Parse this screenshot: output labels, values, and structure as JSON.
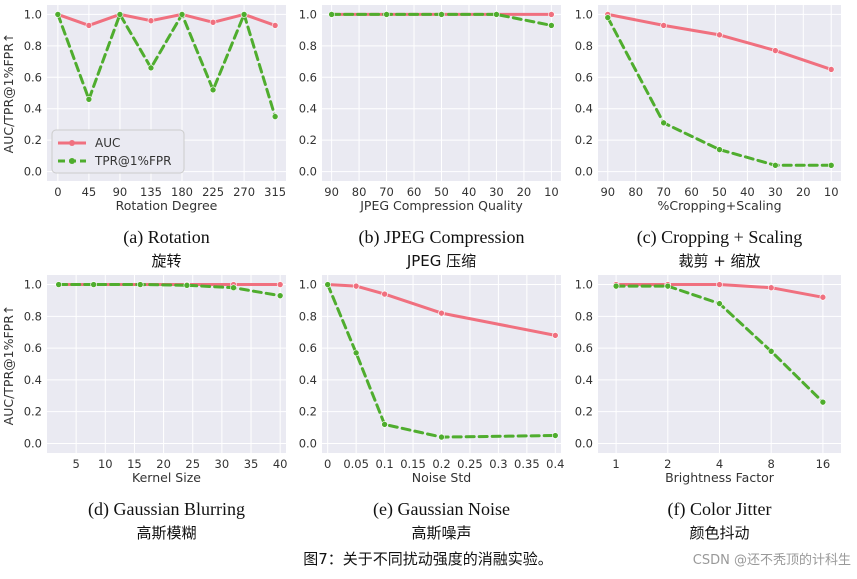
{
  "colors": {
    "auc": "#f0707f",
    "tpr": "#4fad2e",
    "plot_bg": "#eaeaf2",
    "grid": "#ffffff"
  },
  "ylabel": "AUC/TPR@1%FPR↑",
  "legend": {
    "items": [
      "AUC",
      "TPR@1%FPR"
    ],
    "location": "lower-left"
  },
  "figure_caption": "图7：关于不同扰动强度的消融实验。",
  "watermark": "CSDN @还不秃顶的计科生",
  "chart_data": [
    {
      "type": "line",
      "xlabel": "Rotation Degree",
      "caption": "(a) Rotation",
      "caption_cn": "旋转",
      "categories": [
        "0",
        "45",
        "90",
        "135",
        "180",
        "225",
        "270",
        "315"
      ],
      "ylim": [
        0,
        1
      ],
      "yticks": [
        "0.0",
        "0.2",
        "0.4",
        "0.6",
        "0.8",
        "1.0"
      ],
      "series": [
        {
          "name": "AUC",
          "values": [
            1.0,
            0.93,
            1.0,
            0.96,
            1.0,
            0.95,
            1.0,
            0.93
          ]
        },
        {
          "name": "TPR@1%FPR",
          "values": [
            1.0,
            0.46,
            1.0,
            0.66,
            1.0,
            0.52,
            1.0,
            0.35
          ]
        }
      ]
    },
    {
      "type": "line",
      "xlabel": "JPEG Compression Quality",
      "caption": "(b) JPEG Compression",
      "caption_cn": "JPEG 压缩",
      "categories": [
        "90",
        "80",
        "70",
        "60",
        "50",
        "40",
        "30",
        "20",
        "10"
      ],
      "ylim": [
        0,
        1
      ],
      "yticks": [
        "0.0",
        "0.2",
        "0.4",
        "0.6",
        "0.8",
        "1.0"
      ],
      "series": [
        {
          "name": "AUC",
          "x": [
            "90",
            "70",
            "50",
            "30",
            "10"
          ],
          "values": [
            1.0,
            1.0,
            1.0,
            1.0,
            1.0
          ]
        },
        {
          "name": "TPR@1%FPR",
          "x": [
            "90",
            "70",
            "50",
            "30",
            "10"
          ],
          "values": [
            1.0,
            1.0,
            1.0,
            1.0,
            0.93
          ]
        }
      ]
    },
    {
      "type": "line",
      "xlabel": "%Cropping+Scaling",
      "caption": "(c) Cropping + Scaling",
      "caption_cn": "裁剪 + 缩放",
      "categories": [
        "90",
        "80",
        "70",
        "60",
        "50",
        "40",
        "30",
        "20",
        "10"
      ],
      "ylim": [
        0,
        1
      ],
      "yticks": [
        "0.0",
        "0.2",
        "0.4",
        "0.6",
        "0.8",
        "1.0"
      ],
      "series": [
        {
          "name": "AUC",
          "x": [
            "90",
            "70",
            "50",
            "30",
            "10"
          ],
          "values": [
            1.0,
            0.93,
            0.87,
            0.77,
            0.65
          ]
        },
        {
          "name": "TPR@1%FPR",
          "x": [
            "90",
            "70",
            "50",
            "30",
            "10"
          ],
          "values": [
            0.98,
            0.31,
            0.14,
            0.04,
            0.04
          ]
        }
      ]
    },
    {
      "type": "line",
      "xlabel": "Kernel Size",
      "caption": "(d) Gaussian Blurring",
      "caption_cn": "高斯模糊",
      "xlim": [
        0,
        41
      ],
      "xticks": [
        "5",
        "10",
        "15",
        "20",
        "25",
        "30",
        "35",
        "40"
      ],
      "ylim": [
        0,
        1
      ],
      "yticks": [
        "0.0",
        "0.2",
        "0.4",
        "0.6",
        "0.8",
        "1.0"
      ],
      "series": [
        {
          "name": "AUC",
          "x": [
            2,
            8,
            16,
            24,
            32,
            40
          ],
          "values": [
            1.0,
            1.0,
            1.0,
            1.0,
            1.0,
            1.0
          ]
        },
        {
          "name": "TPR@1%FPR",
          "x": [
            2,
            8,
            16,
            24,
            32,
            40
          ],
          "values": [
            1.0,
            1.0,
            1.0,
            0.995,
            0.98,
            0.93
          ]
        }
      ]
    },
    {
      "type": "line",
      "xlabel": "Noise Std",
      "caption": "(e) Gaussian Noise",
      "caption_cn": "高斯噪声",
      "xlim": [
        -0.01,
        0.41
      ],
      "xticks": [
        "0",
        "0.05",
        "0.1",
        "0.15",
        "0.2",
        "0.25",
        "0.3",
        "0.35",
        "0.4"
      ],
      "ylim": [
        0,
        1
      ],
      "yticks": [
        "0.0",
        "0.2",
        "0.4",
        "0.6",
        "0.8",
        "1.0"
      ],
      "series": [
        {
          "name": "AUC",
          "x": [
            0,
            0.05,
            0.1,
            0.2,
            0.4
          ],
          "values": [
            1.0,
            0.99,
            0.94,
            0.82,
            0.68
          ]
        },
        {
          "name": "TPR@1%FPR",
          "x": [
            0,
            0.05,
            0.1,
            0.2,
            0.4
          ],
          "values": [
            1.0,
            0.57,
            0.12,
            0.04,
            0.05
          ]
        }
      ]
    },
    {
      "type": "line",
      "xlabel": "Brightness Factor",
      "caption": "(f) Color Jitter",
      "caption_cn": "颜色抖动",
      "categories": [
        "1",
        "2",
        "4",
        "8",
        "16"
      ],
      "ylim": [
        0,
        1
      ],
      "yticks": [
        "0.0",
        "0.2",
        "0.4",
        "0.6",
        "0.8",
        "1.0"
      ],
      "series": [
        {
          "name": "AUC",
          "values": [
            1.0,
            1.0,
            1.0,
            0.98,
            0.92
          ]
        },
        {
          "name": "TPR@1%FPR",
          "values": [
            0.99,
            0.99,
            0.88,
            0.58,
            0.26
          ]
        }
      ]
    }
  ]
}
